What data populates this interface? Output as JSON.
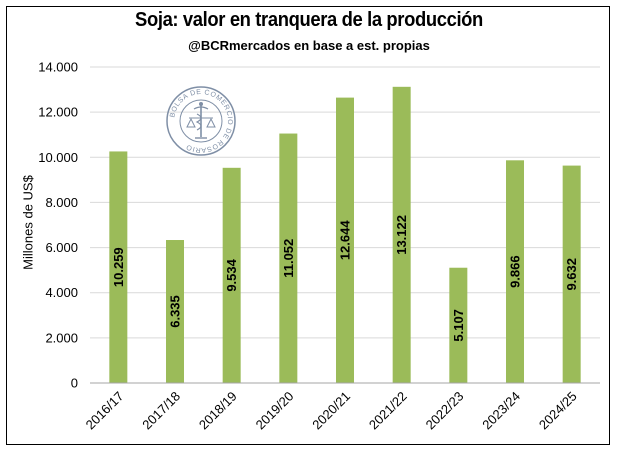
{
  "title": "Soja: valor en tranquera de la producción",
  "subtitle": "@BCRmercados en base a est. propias",
  "seal_text": "BOLSA DE COMERCIO DE ROSARIO",
  "colors": {
    "bar": "#9BBB59",
    "grid": "#D9D9D9",
    "axis": "#A6A6A6",
    "seal": "#7F8FA6"
  },
  "chart_data": {
    "type": "bar",
    "title": "Soja: valor en tranquera de la producción",
    "subtitle": "@BCRmercados en base a est. propias",
    "xlabel": "",
    "ylabel": "Millones de US$",
    "categories": [
      "2016/17",
      "2017/18",
      "2018/19",
      "2019/20",
      "2020/21",
      "2021/22",
      "2022/23",
      "2023/24",
      "2024/25"
    ],
    "values": [
      10259,
      6335,
      9534,
      11052,
      12644,
      13122,
      5107,
      9866,
      9632
    ],
    "value_labels": [
      "10.259",
      "6.335",
      "9.534",
      "11.052",
      "12.644",
      "13.122",
      "5.107",
      "9.866",
      "9.632"
    ],
    "ylim": [
      0,
      14000
    ],
    "yticks": [
      0,
      2000,
      4000,
      6000,
      8000,
      10000,
      12000,
      14000
    ],
    "ytick_labels": [
      "0",
      "2.000",
      "4.000",
      "6.000",
      "8.000",
      "10.000",
      "12.000",
      "14.000"
    ],
    "grid": true,
    "legend": "none"
  }
}
